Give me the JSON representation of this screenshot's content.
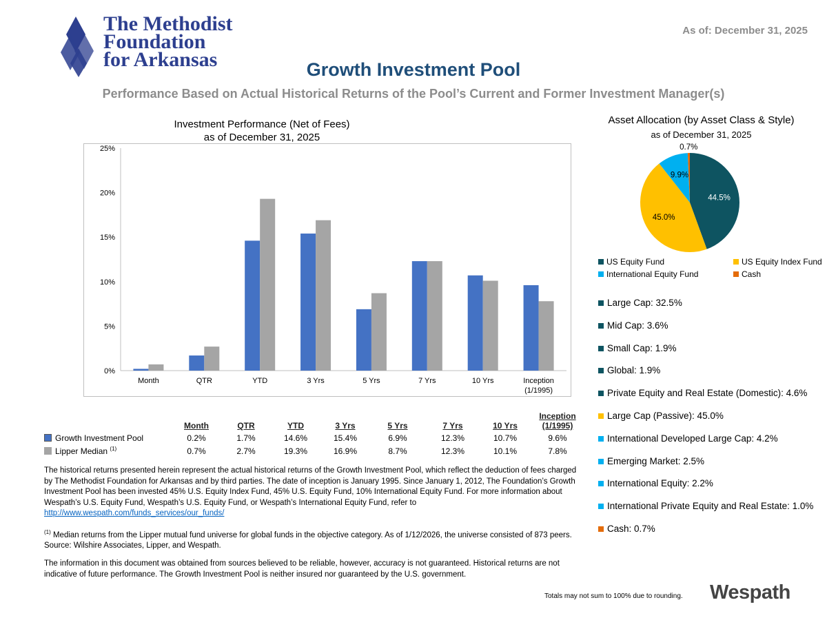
{
  "header": {
    "logo_text": "The Methodist Foundation for Arkansas",
    "logo_lines": [
      "The Methodist",
      "Foundation",
      "for Arkansas"
    ],
    "as_of": "As of: December 31, 2025",
    "title": "Growth Investment Pool",
    "subtitle": "Performance Based on Actual Historical Returns of the Pool’s Current and Former Investment Manager(s)"
  },
  "chart_data": [
    {
      "type": "bar",
      "title": "Investment Performance (Net of Fees)",
      "subtitle": "as of December 31, 2025",
      "categories": [
        "Month",
        "QTR",
        "YTD",
        "3 Yrs",
        "5 Yrs",
        "7 Yrs",
        "10 Yrs",
        "Inception (1/1995)"
      ],
      "category_lines": [
        [
          "Month"
        ],
        [
          "QTR"
        ],
        [
          "YTD"
        ],
        [
          "3 Yrs"
        ],
        [
          "5 Yrs"
        ],
        [
          "7 Yrs"
        ],
        [
          "10 Yrs"
        ],
        [
          "Inception",
          "(1/1995)"
        ]
      ],
      "series": [
        {
          "name": "Growth Investment Pool",
          "color": "#4472c4",
          "values": [
            0.2,
            1.7,
            14.6,
            15.4,
            6.9,
            12.3,
            10.7,
            9.6
          ]
        },
        {
          "name": "Lipper Median",
          "color": "#a5a5a5",
          "values": [
            0.7,
            2.7,
            19.3,
            16.9,
            8.7,
            12.3,
            10.1,
            7.8
          ]
        }
      ],
      "ylim": [
        0,
        25
      ],
      "yticks": [
        "0%",
        "5%",
        "10%",
        "15%",
        "20%",
        "25%"
      ],
      "grid": false
    },
    {
      "type": "pie",
      "title": "Asset Allocation (by Asset Class & Style)",
      "subtitle": "as of December 31, 2025",
      "slices": [
        {
          "name": "US Equity Fund",
          "value": 44.5,
          "label": "44.5%",
          "color": "#0e5461"
        },
        {
          "name": "US Equity Index Fund",
          "value": 45.0,
          "label": "45.0%",
          "color": "#ffc000"
        },
        {
          "name": "International Equity Fund",
          "value": 9.9,
          "label": "9.9%",
          "color": "#00b0f0"
        },
        {
          "name": "Cash",
          "value": 0.7,
          "label": "0.7%",
          "color": "#e46c0a"
        }
      ],
      "legend_position": "bottom"
    }
  ],
  "table": {
    "headers": [
      "Month",
      "QTR",
      "YTD",
      "3 Yrs",
      "5 Yrs",
      "7 Yrs",
      "10 Yrs"
    ],
    "inception_header": [
      "Inception",
      "(1/1995)"
    ],
    "rows": [
      {
        "label": "Growth Investment Pool",
        "sup": "",
        "values": [
          "0.2%",
          "1.7%",
          "14.6%",
          "15.4%",
          "6.9%",
          "12.3%",
          "10.7%",
          "9.6%"
        ]
      },
      {
        "label": "Lipper Median",
        "sup": "(1)",
        "values": [
          "0.7%",
          "2.7%",
          "19.3%",
          "16.9%",
          "8.7%",
          "12.3%",
          "10.1%",
          "7.8%"
        ]
      }
    ]
  },
  "text": {
    "para1": "The historical returns presented herein represent the actual historical returns of the Growth Investment Pool, which reflect the deduction of fees charged by The Methodist Foundation for Arkansas and by third parties. The date of inception is January 1995.  Since January 1, 2012, The Foundation’s Growth Investment Pool has been invested 45% U.S. Equity Index Fund, 45% U.S. Equity Fund, 10% International Equity Fund. For more information about Wespath’s U.S. Equity Fund, Wespath’s U.S. Equity Fund, or Wespath’s International Equity Fund, refer to",
    "link": "http://www.wespath.com/funds_services/our_funds/",
    "note_sup": "(1)",
    "note": " Median returns from the Lipper mutual fund universe for global funds in the objective category. As of 1/12/2026, the universe consisted of 873 peers. Source: Wilshire Associates, Lipper, and Wespath.",
    "disclaimer": "The information in this document was obtained from sources believed to be reliable, however, accuracy is not guaranteed. Historical returns are not indicative of future performance.  The Growth Investment Pool is neither insured nor guaranteed by the U.S. government.",
    "footnote": "Totals may not sum to 100% due to rounding.",
    "wespath_logo": "Wespath"
  },
  "allocation": [
    {
      "label": "Large Cap:  32.5%",
      "color": "#0e5461"
    },
    {
      "label": "Mid Cap:  3.6%",
      "color": "#0e5461"
    },
    {
      "label": "Small Cap:  1.9%",
      "color": "#0e5461"
    },
    {
      "label": "Global:  1.9%",
      "color": "#0e5461"
    },
    {
      "label": "Private Equity and Real Estate (Domestic):  4.6%",
      "color": "#0e5461"
    },
    {
      "label": "Large Cap (Passive):  45.0%",
      "color": "#ffc000"
    },
    {
      "label": "International Developed Large Cap:  4.2%",
      "color": "#00b0f0"
    },
    {
      "label": "Emerging Market:  2.5%",
      "color": "#00b0f0"
    },
    {
      "label": "International Equity:  2.2%",
      "color": "#00b0f0"
    },
    {
      "label": "International Private Equity and Real Estate:  1.0%",
      "color": "#00b0f0"
    },
    {
      "label": "Cash:  0.7%",
      "color": "#e46c0a"
    }
  ]
}
